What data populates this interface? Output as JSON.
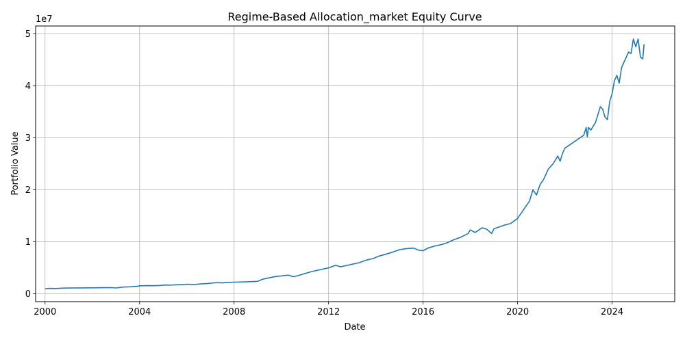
{
  "chart_data": {
    "type": "line",
    "title": "Regime-Based Allocation_market Equity Curve",
    "xlabel": "Date",
    "ylabel": "Portfolio Value",
    "y_offset_label": "1e7",
    "xlim": [
      1999.6,
      2026.65
    ],
    "ylim": [
      -1500000,
      51500000
    ],
    "x_ticks": [
      2000,
      2004,
      2008,
      2012,
      2016,
      2020,
      2024
    ],
    "x_tick_labels": [
      "2000",
      "2004",
      "2008",
      "2012",
      "2016",
      "2020",
      "2024"
    ],
    "y_ticks": [
      0,
      10000000,
      20000000,
      30000000,
      40000000,
      50000000
    ],
    "y_tick_labels": [
      "0",
      "1",
      "2",
      "3",
      "4",
      "5"
    ],
    "grid": true,
    "line_color": "#1f77b4",
    "series": [
      {
        "x": [
          2000.0,
          2000.2,
          2000.4,
          2000.6,
          2000.8,
          2001.0,
          2001.5,
          2002.0,
          2002.5,
          2002.8,
          2003.0,
          2003.3,
          2003.6,
          2003.9,
          2004.0,
          2004.3,
          2004.6,
          2004.9,
          2005.0,
          2005.3,
          2005.6,
          2005.9,
          2006.0,
          2006.3,
          2006.6,
          2006.9,
          2007.0,
          2007.3,
          2007.5,
          2007.7,
          2008.0,
          2008.5,
          2009.0,
          2009.2,
          2009.4,
          2009.6,
          2009.8,
          2010.0,
          2010.3,
          2010.5,
          2010.7,
          2011.0,
          2011.3,
          2011.6,
          2011.9,
          2012.0,
          2012.3,
          2012.5,
          2012.8,
          2013.0,
          2013.3,
          2013.6,
          2013.9,
          2014.1,
          2014.4,
          2014.7,
          2015.0,
          2015.3,
          2015.6,
          2015.8,
          2016.0,
          2016.2,
          2016.5,
          2016.8,
          2017.0,
          2017.3,
          2017.6,
          2017.9,
          2018.0,
          2018.2,
          2018.5,
          2018.7,
          2018.9,
          2019.0,
          2019.3,
          2019.5,
          2019.7,
          2020.0,
          2020.3,
          2020.5,
          2020.65,
          2020.8,
          2020.95,
          2021.1,
          2021.3,
          2021.5,
          2021.7,
          2021.8,
          2021.9,
          2022.0,
          2022.8,
          2022.9,
          2022.95,
          2023.0,
          2023.1,
          2023.3,
          2023.4,
          2023.5,
          2023.6,
          2023.7,
          2023.8,
          2023.9,
          2024.0,
          2024.1,
          2024.2,
          2024.3,
          2024.4,
          2024.5,
          2024.7,
          2024.8,
          2024.9,
          2025.0,
          2025.1,
          2025.2,
          2025.3,
          2025.35
        ],
        "y": [
          1000000,
          1050000,
          1020000,
          1050000,
          1100000,
          1120000,
          1140000,
          1160000,
          1180000,
          1200000,
          1130000,
          1300000,
          1350000,
          1450000,
          1550000,
          1580000,
          1560000,
          1620000,
          1700000,
          1680000,
          1750000,
          1800000,
          1850000,
          1800000,
          1900000,
          2000000,
          2050000,
          2150000,
          2100000,
          2200000,
          2250000,
          2320000,
          2400000,
          2800000,
          3000000,
          3200000,
          3350000,
          3450000,
          3600000,
          3300000,
          3500000,
          3900000,
          4300000,
          4600000,
          4900000,
          5000000,
          5500000,
          5200000,
          5500000,
          5700000,
          6000000,
          6500000,
          6800000,
          7200000,
          7600000,
          8000000,
          8500000,
          8700000,
          8800000,
          8400000,
          8300000,
          8800000,
          9200000,
          9500000,
          9800000,
          10400000,
          10900000,
          11600000,
          12300000,
          11800000,
          12700000,
          12400000,
          11600000,
          12500000,
          13000000,
          13300000,
          13500000,
          14500000,
          16500000,
          17800000,
          20000000,
          19000000,
          21000000,
          22000000,
          24000000,
          25000000,
          26500000,
          25500000,
          27000000,
          28000000,
          30500000,
          32000000,
          30200000,
          32000000,
          31500000,
          33000000,
          34500000,
          36000000,
          35500000,
          34000000,
          33500000,
          37000000,
          38500000,
          41000000,
          42000000,
          40500000,
          43500000,
          44500000,
          46500000,
          46200000,
          49000000,
          47500000,
          49000000,
          45500000,
          45200000,
          48000000
        ]
      }
    ]
  }
}
